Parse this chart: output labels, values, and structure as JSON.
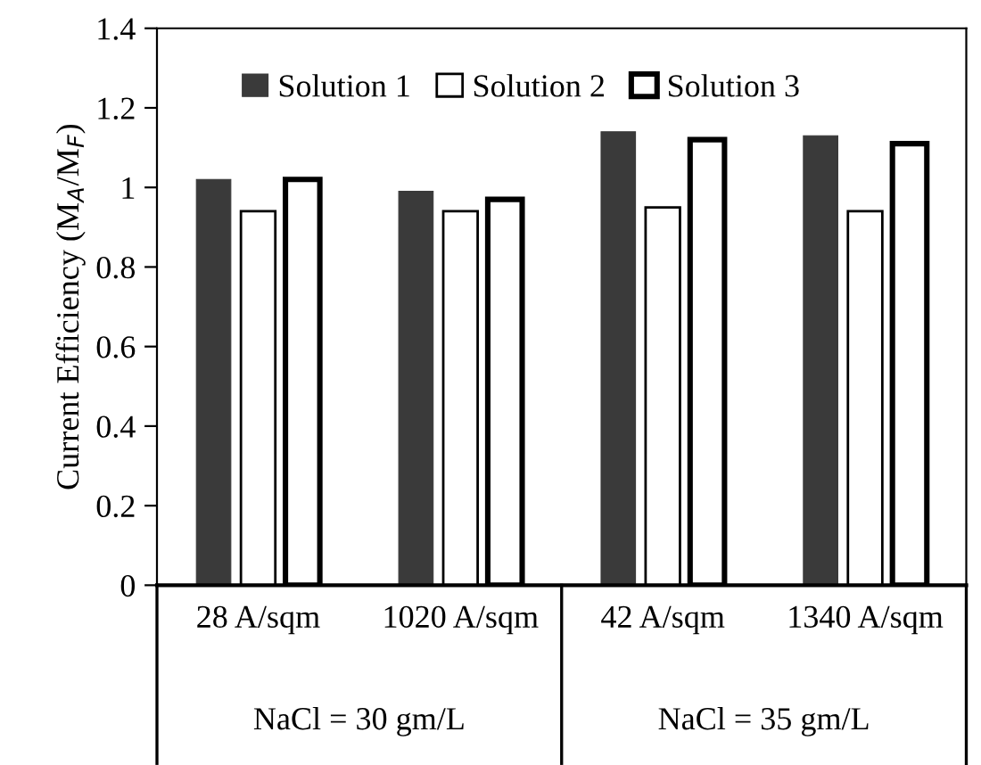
{
  "chart_data": {
    "type": "bar",
    "ylabel": "Current Efficiency (M$_{A}$/M$_{F}$)",
    "categories": [
      "28 A/sqm",
      "1020 A/sqm",
      "42 A/sqm",
      "1340 A/sqm"
    ],
    "series": [
      {
        "name": "Solution 1",
        "color": "#3a3a3a",
        "values": [
          1.02,
          0.99,
          1.14,
          1.13
        ]
      },
      {
        "name": "Solution 2",
        "color": "#ffffff",
        "values": [
          0.94,
          0.94,
          0.95,
          0.94
        ]
      },
      {
        "name": "Solution 3",
        "color": "#ffffff",
        "values": [
          1.02,
          0.97,
          1.12,
          1.11
        ]
      }
    ],
    "annotations": [
      "NaCl = 30 gm/L",
      "NaCl = 35 gm/L"
    ],
    "ylim": [
      0,
      1.4
    ],
    "yticks": [
      0,
      0.2,
      0.4,
      0.6,
      0.8,
      1,
      1.2,
      1.4
    ],
    "grid": false,
    "legend": "top"
  }
}
